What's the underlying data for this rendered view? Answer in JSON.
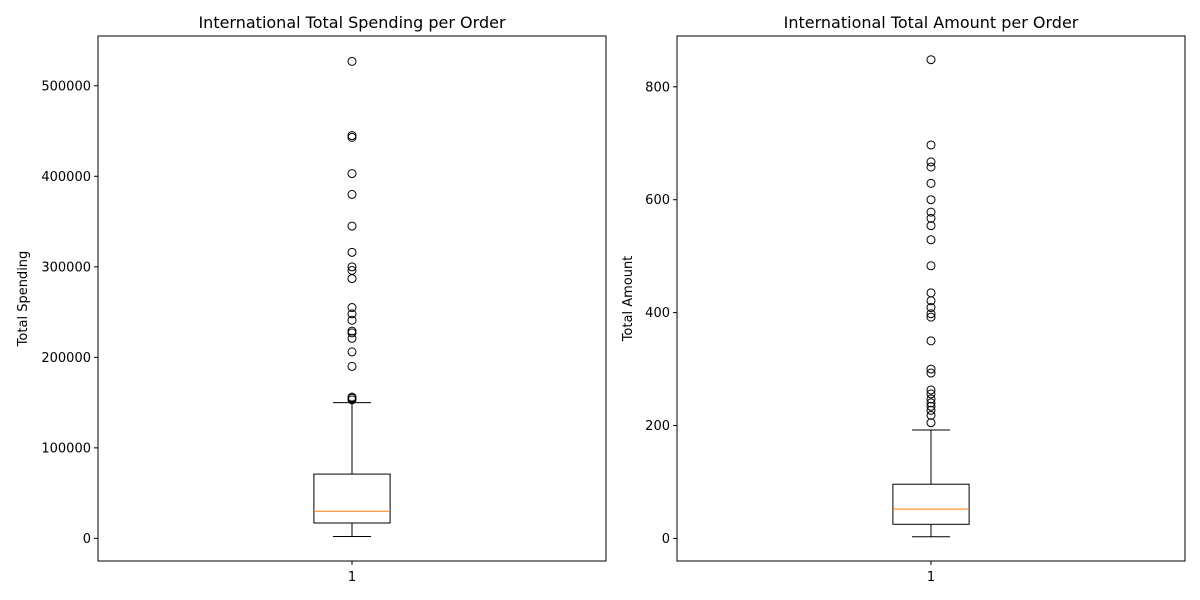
{
  "chart_data": [
    {
      "type": "box",
      "title": "International Total Spending per Order",
      "xlabel": "",
      "ylabel": "Total Spending",
      "categories": [
        "1"
      ],
      "ylim": [
        -25000,
        555000
      ],
      "yticks": [
        0,
        100000,
        200000,
        300000,
        400000,
        500000
      ],
      "ytick_labels": [
        "0",
        "100000",
        "200000",
        "300000",
        "400000",
        "500000"
      ],
      "box": {
        "whisker_low": 2000,
        "q1": 17000,
        "median": 30000,
        "q3": 71000,
        "whisker_high": 150000
      },
      "outliers": [
        527000,
        445000,
        443000,
        403000,
        380000,
        345000,
        316000,
        300000,
        296000,
        287000,
        255000,
        248000,
        241000,
        229000,
        227000,
        221000,
        206000,
        190000,
        156000,
        155000,
        153000
      ],
      "grid": false,
      "box_color": "#000000",
      "median_color": "#ff7f0e"
    },
    {
      "type": "box",
      "title": "International Total Amount per Order",
      "xlabel": "",
      "ylabel": "Total Amount",
      "categories": [
        "1"
      ],
      "ylim": [
        -40,
        890
      ],
      "yticks": [
        0,
        200,
        400,
        600,
        800
      ],
      "ytick_labels": [
        "0",
        "200",
        "400",
        "600",
        "800"
      ],
      "box": {
        "whisker_low": 3,
        "q1": 25,
        "median": 52,
        "q3": 96,
        "whisker_high": 192
      },
      "outliers": [
        848,
        697,
        667,
        658,
        629,
        600,
        578,
        567,
        554,
        529,
        483,
        435,
        421,
        409,
        398,
        392,
        350,
        300,
        293,
        263,
        256,
        247,
        240,
        234,
        227,
        218,
        205
      ],
      "grid": false,
      "box_color": "#000000",
      "median_color": "#ff7f0e"
    }
  ]
}
